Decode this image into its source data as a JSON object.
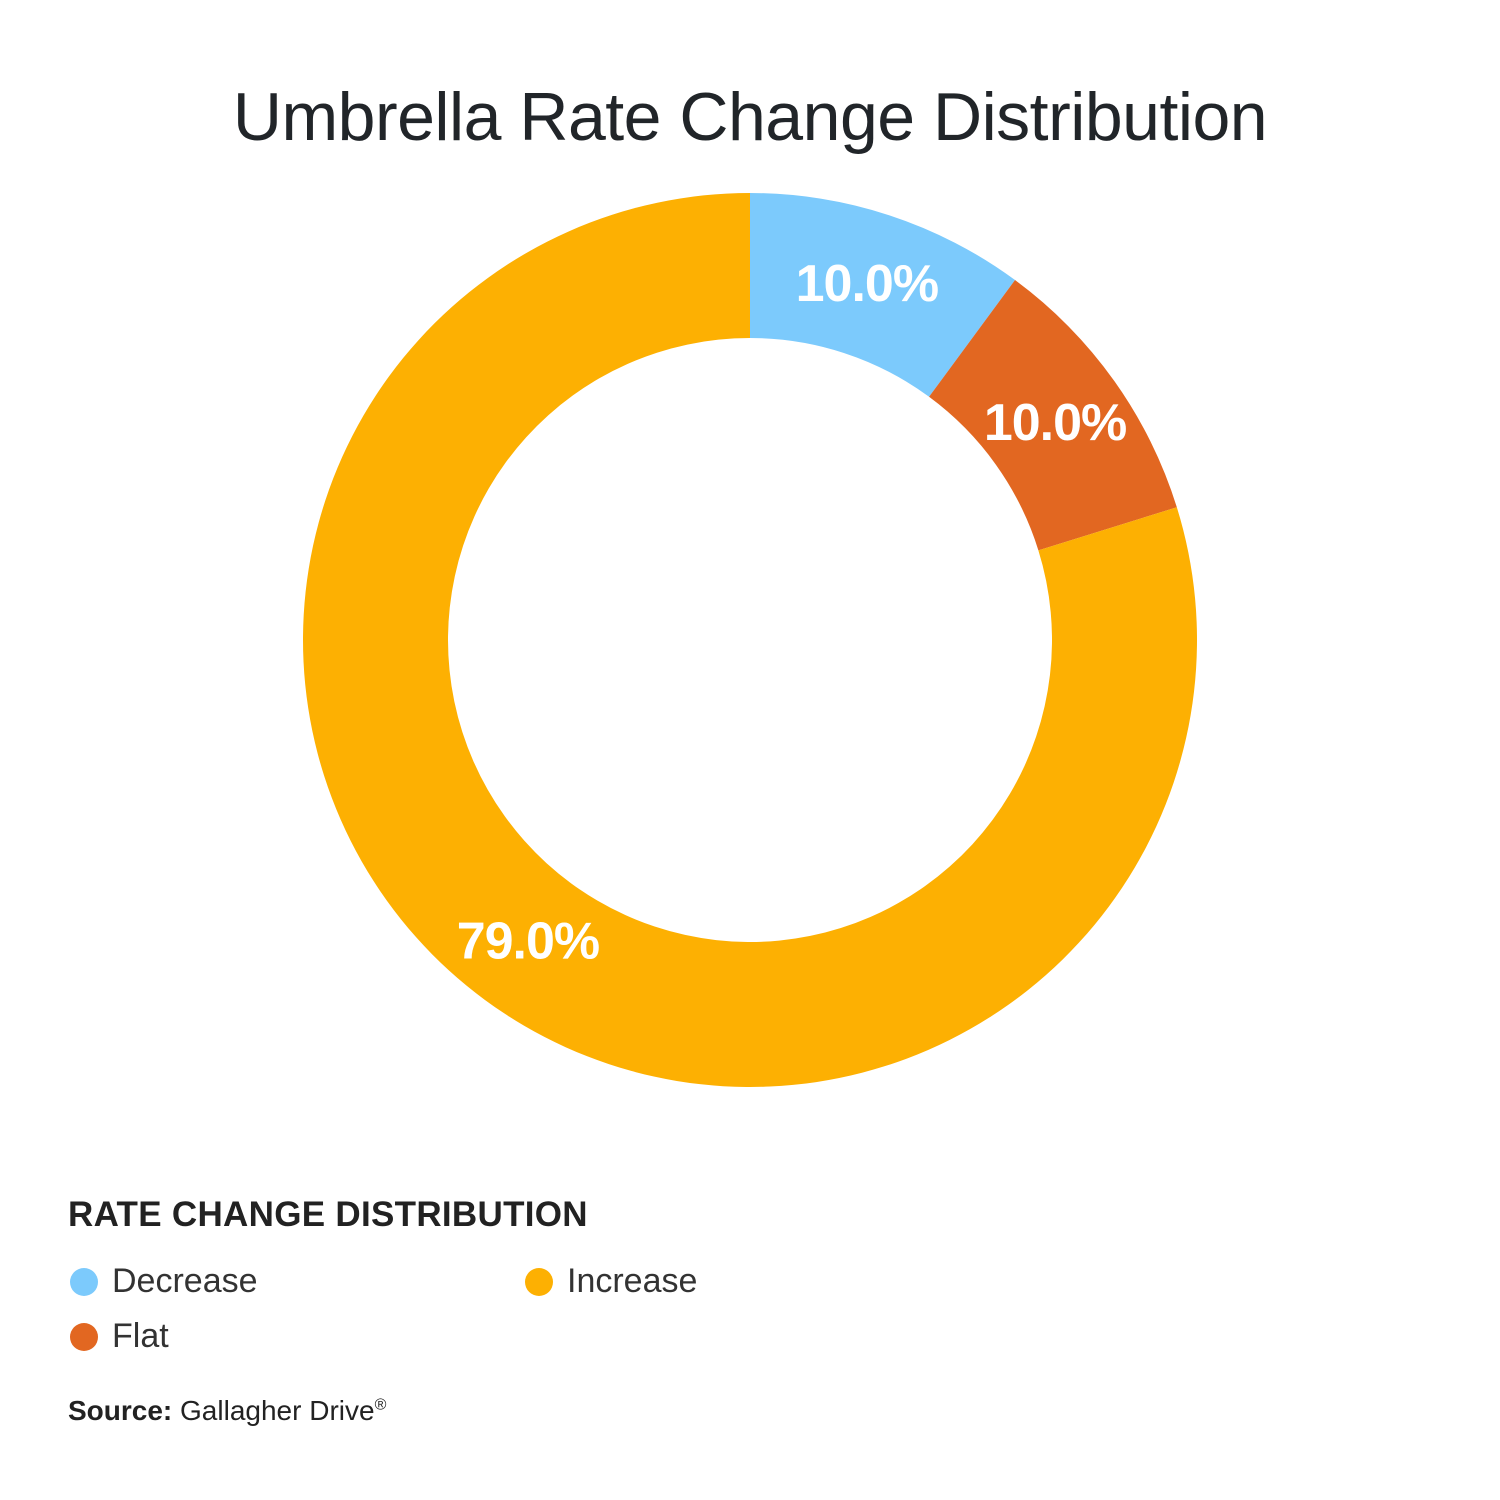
{
  "chart_data": {
    "type": "pie",
    "title": "Umbrella Rate Change Distribution",
    "legend_title": "RATE CHANGE DISTRIBUTION",
    "legend_placement": "bottom-left",
    "series": [
      {
        "name": "Decrease",
        "value": 10.0,
        "label": "10.0%",
        "color": "#7ccafc"
      },
      {
        "name": "Flat",
        "value": 10.0,
        "label": "10.0%",
        "color": "#e26721"
      },
      {
        "name": "Increase",
        "value": 79.0,
        "label": "79.0%",
        "color": "#fdb002"
      }
    ],
    "legend_order": [
      "Decrease",
      "Increase",
      "Flat"
    ]
  },
  "source": {
    "label": "Source:",
    "text": "Gallagher Drive",
    "mark": "®"
  }
}
